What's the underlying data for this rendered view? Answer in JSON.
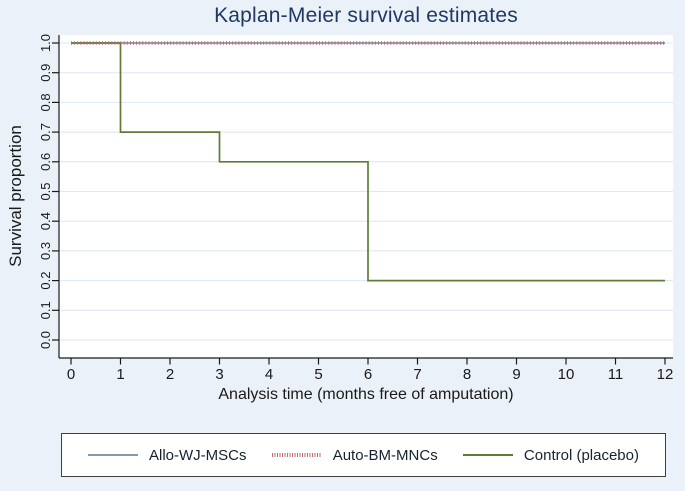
{
  "chart_data": {
    "type": "line",
    "subtype": "kaplan-meier-step",
    "title": "Kaplan-Meier survival estimates",
    "xlabel": "Analysis time (months free of amputation)",
    "ylabel": "Survival proportion",
    "xlim": [
      0,
      12
    ],
    "ylim": [
      0.0,
      1.0
    ],
    "xticks": [
      0,
      1,
      2,
      3,
      4,
      5,
      6,
      7,
      8,
      9,
      10,
      11,
      12
    ],
    "yticks": [
      "0.0",
      "0.1",
      "0.2",
      "0.3",
      "0.4",
      "0.5",
      "0.6",
      "0.7",
      "0.8",
      "0.9",
      "1.0"
    ],
    "grid": "horizontal",
    "legend_position": "bottom",
    "series": [
      {
        "name": "Allo-WJ-MSCs",
        "color": "#8399ad",
        "style": "solid",
        "points": [
          [
            0,
            1.0
          ],
          [
            12,
            1.0
          ]
        ]
      },
      {
        "name": "Control (placebo)",
        "color": "#5f7d39",
        "style": "solid",
        "points": [
          [
            0,
            1.0
          ],
          [
            1,
            1.0
          ],
          [
            1,
            0.7
          ],
          [
            3,
            0.7
          ],
          [
            3,
            0.6
          ],
          [
            6,
            0.6
          ],
          [
            6,
            0.2
          ],
          [
            12,
            0.2
          ]
        ]
      },
      {
        "name": "Auto-BM-MNCs",
        "color": "#bb6a6d",
        "style": "dotted",
        "points": [
          [
            0,
            1.0
          ],
          [
            12,
            1.0
          ]
        ]
      }
    ],
    "legend_order": [
      "Allo-WJ-MSCs",
      "Auto-BM-MNCs",
      "Control (placebo)"
    ]
  },
  "palette": {
    "page_bg": "#eaf1f8",
    "plot_bg": "#ffffff",
    "grid": "#dbe7f2",
    "axis": "#1a1a1a",
    "tick_text": "#1a1a1a",
    "title": "#1f3864",
    "legend_border": "#3f3f3f"
  }
}
